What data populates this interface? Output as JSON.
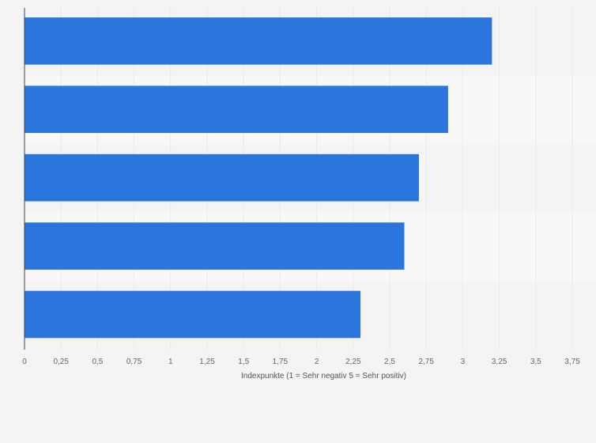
{
  "chart_data": {
    "type": "bar",
    "orientation": "horizontal",
    "categories": [
      "",
      "",
      "",
      "",
      ""
    ],
    "values": [
      3.2,
      2.9,
      2.7,
      2.6,
      2.3
    ],
    "title": "",
    "xlabel": "Indexpunkte (1 = Sehr negativ 5 = Sehr positiv)",
    "ylabel": "",
    "xlim": [
      0,
      3.75
    ],
    "xticks": [
      0,
      0.25,
      0.5,
      0.75,
      1,
      1.25,
      1.5,
      1.75,
      2,
      2.25,
      2.5,
      2.75,
      3,
      3.25,
      3.5,
      3.75
    ],
    "xtick_labels": [
      "0",
      "0,25",
      "0,5",
      "0,75",
      "1",
      "1,25",
      "1,5",
      "1,75",
      "2",
      "2,25",
      "2,5",
      "2,75",
      "3",
      "3,25",
      "3,5",
      "3,75"
    ],
    "grid": true,
    "legend": "none",
    "colors": {
      "bar": "#2a76dd",
      "background": "#f4f4f4",
      "band_light": "#f8f8f8",
      "gridline": "#dddddd",
      "axis": "#444444"
    }
  }
}
